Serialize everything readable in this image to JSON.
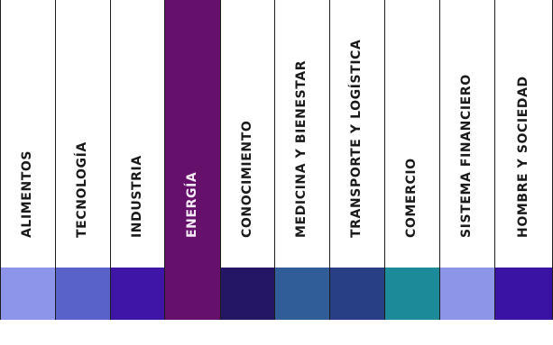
{
  "categories": [
    {
      "label": "ALIMENTOS",
      "color": "#8c95ea",
      "active": false
    },
    {
      "label": "TECNOLOGÍA",
      "color": "#5862c8",
      "active": false
    },
    {
      "label": "INDUSTRIA",
      "color": "#3e15a6",
      "active": false
    },
    {
      "label": "ENERGÍA",
      "color": "#65106b",
      "active": true
    },
    {
      "label": "CONOCIMIENTO",
      "color": "#251565",
      "active": false
    },
    {
      "label": "MEDICINA Y BIENESTAR",
      "color": "#305d97",
      "active": false
    },
    {
      "label": "TRANSPORTE Y LOGÍSTICA",
      "color": "#283f86",
      "active": false
    },
    {
      "label": "COMERCIO",
      "color": "#1d8a99",
      "active": false
    },
    {
      "label": "SISTEMA FINANCIERO",
      "color": "#8c95e7",
      "active": false
    },
    {
      "label": "HOMBRE Y SOCIEDAD",
      "color": "#3a13a4",
      "active": false
    }
  ]
}
